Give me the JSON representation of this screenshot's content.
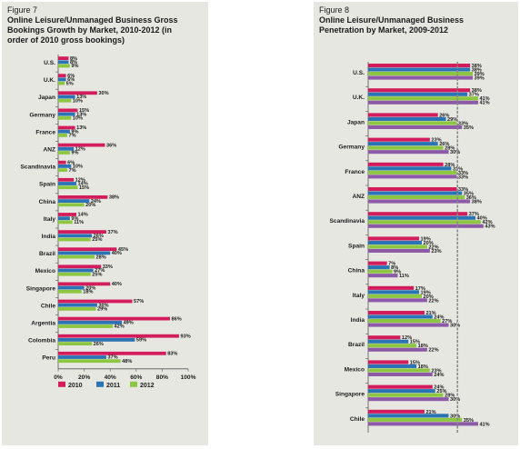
{
  "chart_data": [
    {
      "type": "bar",
      "figure_label": "Figure 7",
      "title": "Online Leisure/Unmanaged Business Gross Bookings Growth by Market, 2010-2012 (in order of 2010 gross bookings)",
      "title_lines": [
        "Online Leisure/Unmanaged Business Gross",
        "Bookings Growth by Market, 2010-2012 (in",
        "order of 2010 gross bookings)"
      ],
      "orientation": "horizontal",
      "categories": [
        "U.S.",
        "U.K.",
        "Japan",
        "Germany",
        "France",
        "ANZ",
        "Scandinavia",
        "Spain",
        "China",
        "Italy",
        "India",
        "Brazil",
        "Mexico",
        "Singapore",
        "Chile",
        "Argentia",
        "Colombia",
        "Peru"
      ],
      "series": [
        {
          "name": "2010",
          "color": "#d31c5b",
          "values": [
            8,
            6,
            30,
            15,
            13,
            36,
            6,
            12,
            38,
            14,
            37,
            45,
            33,
            40,
            57,
            86,
            93,
            83
          ]
        },
        {
          "name": "2011",
          "color": "#2a74b5",
          "values": [
            8,
            6,
            13,
            13,
            9,
            12,
            10,
            14,
            24,
            9,
            26,
            40,
            27,
            20,
            30,
            49,
            59,
            37
          ]
        },
        {
          "name": "2012",
          "color": "#8dc641",
          "values": [
            9,
            5,
            10,
            10,
            7,
            9,
            7,
            15,
            20,
            11,
            25,
            28,
            25,
            18,
            29,
            42,
            26,
            48
          ]
        }
      ],
      "value_suffix": "%",
      "xlim": [
        0,
        100
      ],
      "xticks": [
        "0%",
        "20%",
        "40%",
        "60%",
        "80%",
        "100%"
      ],
      "legend": "bottom",
      "grid": false
    },
    {
      "type": "bar",
      "figure_label": "Figure 8",
      "title": "Online Leisure/Unmanaged Business Penetration by Market, 2009-2012",
      "title_lines": [
        "Online Leisure/Unmanaged Business",
        "Penetration by Market, 2009-2012"
      ],
      "orientation": "horizontal",
      "categories": [
        "U.S.",
        "U.K.",
        "Japan",
        "Germany",
        "France",
        "ANZ",
        "Scandinavia",
        "Spain",
        "China",
        "Italy",
        "India",
        "Brazil",
        "Mexico",
        "Singapore",
        "Chile"
      ],
      "series": [
        {
          "name": "2009",
          "color": "#d31c5b",
          "values": [
            38,
            38,
            26,
            23,
            28,
            33,
            37,
            19,
            7,
            17,
            21,
            12,
            15,
            24,
            21
          ]
        },
        {
          "name": "2010",
          "color": "#2a74b5",
          "values": [
            38,
            37,
            29,
            26,
            31,
            35,
            40,
            20,
            8,
            19,
            24,
            15,
            18,
            25,
            30
          ]
        },
        {
          "name": "2011",
          "color": "#8dc641",
          "values": [
            39,
            41,
            33,
            28,
            33,
            36,
            42,
            22,
            9,
            20,
            27,
            18,
            23,
            28,
            35
          ]
        },
        {
          "name": "2012",
          "color": "#8c5aa6",
          "values": [
            39,
            41,
            35,
            30,
            33,
            38,
            43,
            23,
            11,
            22,
            30,
            22,
            24,
            30,
            41
          ]
        }
      ],
      "value_suffix": "%",
      "reference_line": 33.3,
      "legend": "none",
      "grid": false
    }
  ]
}
